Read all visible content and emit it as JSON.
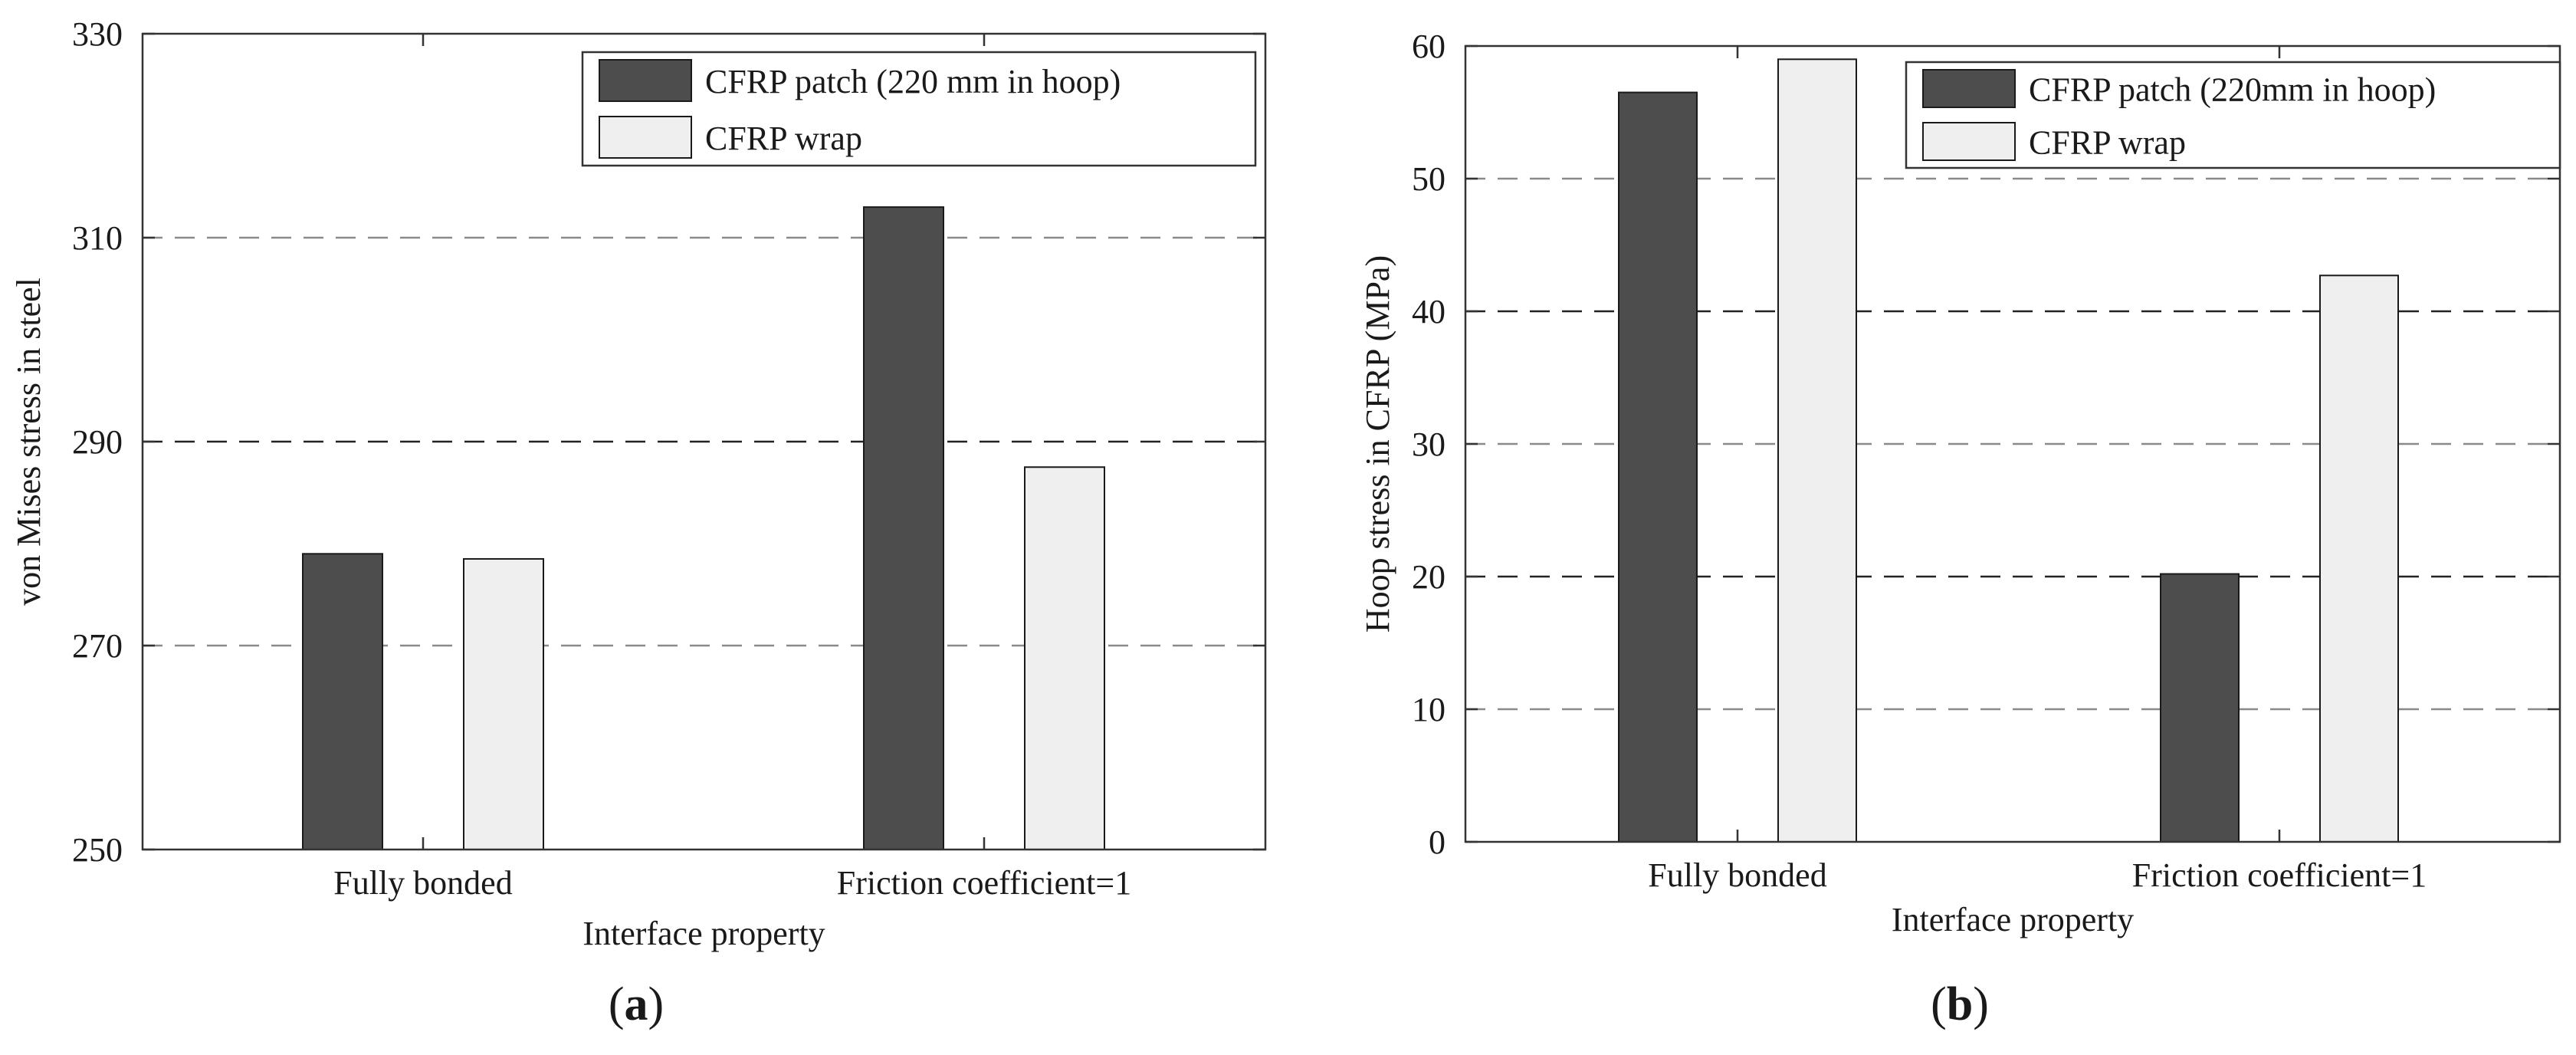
{
  "chart_data": [
    {
      "type": "bar",
      "panel_label": "a",
      "categories": [
        "Fully bonded",
        "Friction coefficient=1"
      ],
      "series": [
        {
          "name": "CFRP patch (220 mm in hoop)",
          "values": [
            279,
            313
          ],
          "color": "#4d4d4d"
        },
        {
          "name": "CFRP wrap",
          "values": [
            278.5,
            287.5
          ],
          "color": "#efefef"
        }
      ],
      "xlabel": "Interface property",
      "ylabel": "von Mises stress in steel",
      "ylim": [
        250,
        330
      ],
      "yticks": [
        "250",
        "270",
        "290",
        "310",
        "330"
      ],
      "grid": "horizontal dashed",
      "legend_position": "top-right"
    },
    {
      "type": "bar",
      "panel_label": "b",
      "categories": [
        "Fully bonded",
        "Friction coefficient=1"
      ],
      "series": [
        {
          "name": "CFRP patch (220mm in hoop)",
          "values": [
            56.5,
            20.2
          ],
          "color": "#4d4d4d"
        },
        {
          "name": "CFRP wrap",
          "values": [
            59,
            42.7
          ],
          "color": "#efefef"
        }
      ],
      "xlabel": "Interface property",
      "ylabel": "Hoop stress in CFRP (MPa)",
      "ylim": [
        0,
        60
      ],
      "yticks": [
        "0",
        "10",
        "20",
        "30",
        "40",
        "50",
        "60"
      ],
      "grid": "horizontal dashed",
      "legend_position": "top-right"
    }
  ]
}
